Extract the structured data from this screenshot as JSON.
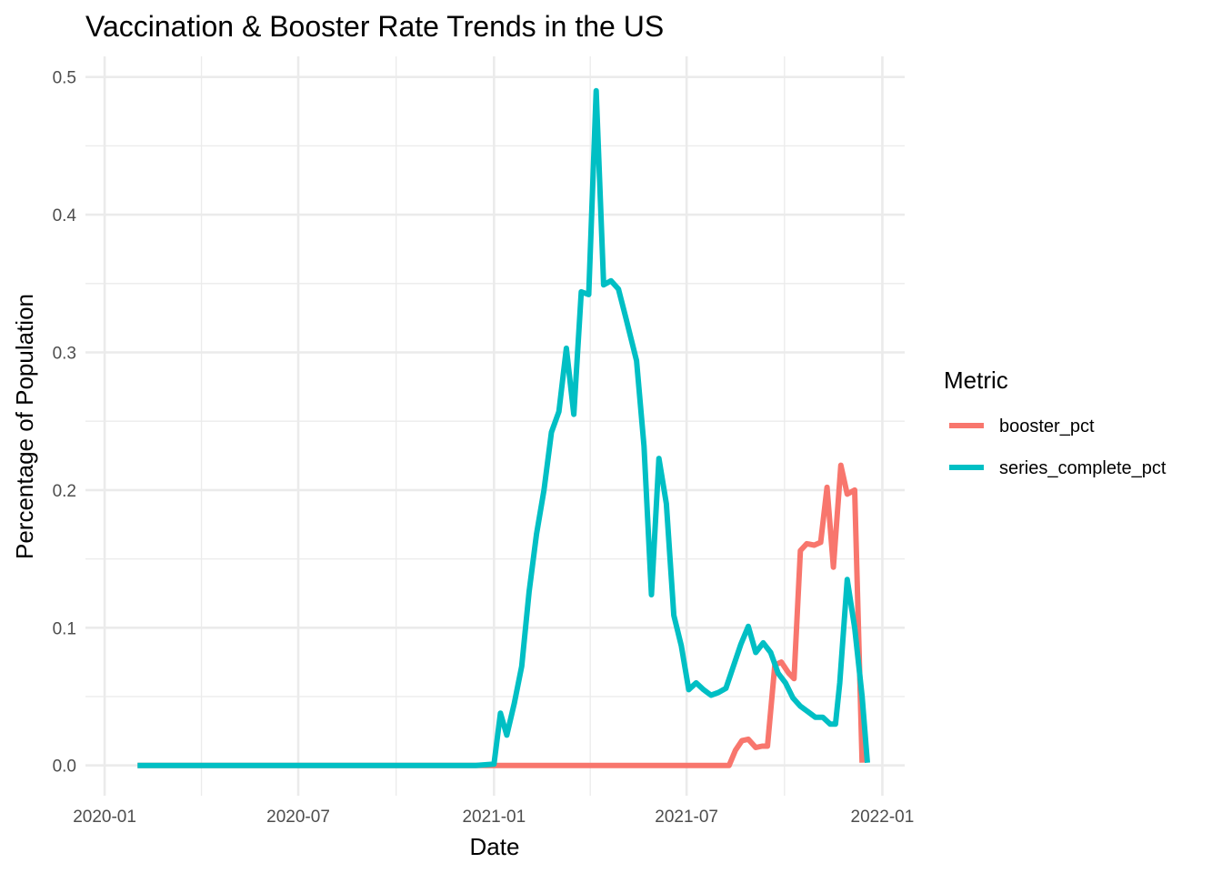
{
  "chart_data": {
    "type": "line",
    "title": "Vaccination & Booster Rate Trends in the US",
    "xlabel": "Date",
    "ylabel": "Percentage of Population",
    "x_ticks": [
      "2020-01",
      "2020-07",
      "2021-01",
      "2021-07",
      "2022-01"
    ],
    "y_ticks": [
      "0.0",
      "0.1",
      "0.2",
      "0.3",
      "0.4",
      "0.5"
    ],
    "xlim": [
      "2019-12-14",
      "2022-01-22"
    ],
    "ylim": [
      -0.022,
      0.515
    ],
    "grid": true,
    "legend": {
      "title": "Metric",
      "position": "right"
    },
    "series": [
      {
        "name": "booster_pct",
        "color": "#F8766D",
        "points": [
          [
            "2020-02-01",
            0.0
          ],
          [
            "2020-06-01",
            0.0
          ],
          [
            "2020-10-01",
            0.0
          ],
          [
            "2020-12-01",
            0.0
          ],
          [
            "2021-01-01",
            0.0
          ],
          [
            "2021-03-01",
            0.0
          ],
          [
            "2021-05-01",
            0.0
          ],
          [
            "2021-07-01",
            0.0
          ],
          [
            "2021-08-10",
            0.0
          ],
          [
            "2021-08-16",
            0.011
          ],
          [
            "2021-08-22",
            0.018
          ],
          [
            "2021-08-28",
            0.019
          ],
          [
            "2021-09-04",
            0.013
          ],
          [
            "2021-09-10",
            0.014
          ],
          [
            "2021-09-15",
            0.014
          ],
          [
            "2021-09-22",
            0.073
          ],
          [
            "2021-09-28",
            0.075
          ],
          [
            "2021-10-05",
            0.067
          ],
          [
            "2021-10-10",
            0.063
          ],
          [
            "2021-10-16",
            0.156
          ],
          [
            "2021-10-22",
            0.161
          ],
          [
            "2021-10-29",
            0.16
          ],
          [
            "2021-11-04",
            0.162
          ],
          [
            "2021-11-10",
            0.202
          ],
          [
            "2021-11-16",
            0.144
          ],
          [
            "2021-11-23",
            0.218
          ],
          [
            "2021-11-29",
            0.197
          ],
          [
            "2021-12-06",
            0.2
          ],
          [
            "2021-12-13",
            0.002
          ]
        ]
      },
      {
        "name": "series_complete_pct",
        "color": "#00BFC4",
        "points": [
          [
            "2020-02-01",
            0.0
          ],
          [
            "2020-06-01",
            0.0
          ],
          [
            "2020-10-01",
            0.0
          ],
          [
            "2020-12-15",
            0.0
          ],
          [
            "2021-01-01",
            0.001
          ],
          [
            "2021-01-07",
            0.038
          ],
          [
            "2021-01-13",
            0.022
          ],
          [
            "2021-01-20",
            0.045
          ],
          [
            "2021-01-27",
            0.072
          ],
          [
            "2021-02-03",
            0.126
          ],
          [
            "2021-02-10",
            0.168
          ],
          [
            "2021-02-17",
            0.2
          ],
          [
            "2021-02-24",
            0.242
          ],
          [
            "2021-03-03",
            0.257
          ],
          [
            "2021-03-10",
            0.303
          ],
          [
            "2021-03-17",
            0.255
          ],
          [
            "2021-03-24",
            0.344
          ],
          [
            "2021-03-31",
            0.342
          ],
          [
            "2021-04-07",
            0.49
          ],
          [
            "2021-04-14",
            0.349
          ],
          [
            "2021-04-21",
            0.352
          ],
          [
            "2021-04-28",
            0.346
          ],
          [
            "2021-05-05",
            0.325
          ],
          [
            "2021-05-15",
            0.294
          ],
          [
            "2021-05-22",
            0.232
          ],
          [
            "2021-05-29",
            0.124
          ],
          [
            "2021-06-05",
            0.223
          ],
          [
            "2021-06-12",
            0.19
          ],
          [
            "2021-06-19",
            0.109
          ],
          [
            "2021-06-26",
            0.087
          ],
          [
            "2021-07-03",
            0.055
          ],
          [
            "2021-07-10",
            0.06
          ],
          [
            "2021-07-17",
            0.055
          ],
          [
            "2021-07-24",
            0.051
          ],
          [
            "2021-07-31",
            0.053
          ],
          [
            "2021-08-07",
            0.056
          ],
          [
            "2021-08-14",
            0.072
          ],
          [
            "2021-08-21",
            0.088
          ],
          [
            "2021-08-28",
            0.101
          ],
          [
            "2021-09-04",
            0.082
          ],
          [
            "2021-09-11",
            0.089
          ],
          [
            "2021-09-18",
            0.082
          ],
          [
            "2021-09-25",
            0.067
          ],
          [
            "2021-10-02",
            0.06
          ],
          [
            "2021-10-09",
            0.049
          ],
          [
            "2021-10-16",
            0.043
          ],
          [
            "2021-10-23",
            0.039
          ],
          [
            "2021-10-30",
            0.035
          ],
          [
            "2021-11-06",
            0.035
          ],
          [
            "2021-11-13",
            0.03
          ],
          [
            "2021-11-18",
            0.03
          ],
          [
            "2021-11-22",
            0.06
          ],
          [
            "2021-11-29",
            0.135
          ],
          [
            "2021-12-06",
            0.1
          ],
          [
            "2021-12-13",
            0.05
          ],
          [
            "2021-12-18",
            0.002
          ]
        ]
      }
    ]
  }
}
